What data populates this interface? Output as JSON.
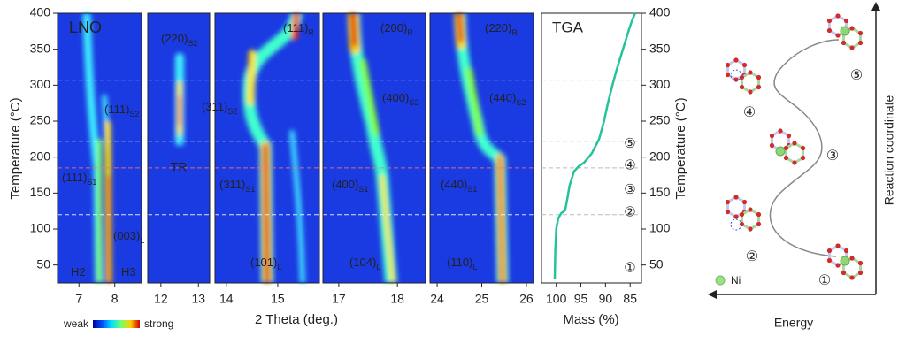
{
  "chart_data": [
    {
      "type": "heatmap",
      "ylabel": "Temperature (°C)",
      "xlabel": "2 Theta (deg.)",
      "ylim": [
        25,
        400
      ],
      "yticks": [
        50,
        100,
        150,
        200,
        250,
        300,
        350,
        400
      ],
      "panels": [
        {
          "title": "LNO",
          "xlim": [
            6.4,
            8.75
          ],
          "xticks": [
            7,
            8
          ],
          "labels": [
            {
              "label": "(111)",
              "sub": "S2"
            },
            {
              "label": "(111)",
              "sub": "S1"
            },
            {
              "label": "(003)",
              "sub": "L"
            },
            {
              "label": "H2"
            },
            {
              "label": "H3"
            }
          ]
        },
        {
          "xlim": [
            11.65,
            13.3
          ],
          "xticks": [
            12,
            13
          ],
          "labels": [
            {
              "label": "(220)",
              "sub": "S2"
            }
          ]
        },
        {
          "xlim": [
            13.78,
            15.81
          ],
          "xticks": [
            14,
            15
          ],
          "labels": [
            {
              "label": "(111)",
              "sub": "R"
            },
            {
              "label": "(311)",
              "sub": "S2"
            },
            {
              "label": "(311)",
              "sub": "S1"
            },
            {
              "label": "(101)",
              "sub": "L"
            }
          ]
        },
        {
          "xlim": [
            16.73,
            18.48
          ],
          "xticks": [
            17,
            18
          ],
          "labels": [
            {
              "label": "(200)",
              "sub": "R"
            },
            {
              "label": "(400)",
              "sub": "S2"
            },
            {
              "label": "(400)",
              "sub": "S1"
            },
            {
              "label": "(104)",
              "sub": "L"
            }
          ]
        },
        {
          "xlim": [
            23.84,
            26.16
          ],
          "xticks": [
            24,
            25,
            26
          ],
          "labels": [
            {
              "label": "(220)",
              "sub": "R"
            },
            {
              "label": "(440)",
              "sub": "S2"
            },
            {
              "label": "(440)",
              "sub": "S1"
            },
            {
              "label": "(110)",
              "sub": "L"
            }
          ]
        }
      ],
      "reference_lines": [
        {
          "value": 307,
          "color": "#ffffff"
        },
        {
          "value": 222,
          "color": "#ffffff"
        },
        {
          "value": 185,
          "color": "#ff7070"
        },
        {
          "value": 120,
          "color": "#ffffff"
        }
      ],
      "reference_label": "TR",
      "colorbar": {
        "low": "weak",
        "high": "strong"
      }
    },
    {
      "type": "line",
      "title": "TGA",
      "xlabel": "Mass (%)",
      "ylabel": "Temperature (°C)",
      "xlim": [
        103,
        82.7
      ],
      "xticks": [
        100,
        95,
        90,
        85
      ],
      "ylim": [
        25,
        400
      ],
      "yticks": [
        50,
        100,
        150,
        200,
        250,
        300,
        350,
        400
      ],
      "x": [
        100.3,
        100.2,
        100,
        99.6,
        99,
        98.2,
        97.8,
        97.3,
        96.4,
        95.3,
        94.4,
        92.8,
        91.3,
        90.3,
        89.5,
        88.6,
        87.8,
        86.9,
        86,
        85.2,
        84.6,
        84
      ],
      "series": [
        {
          "color": "#25c39c",
          "values": [
            30,
            70,
            100,
            115,
            122,
            126,
            140,
            160,
            180,
            188,
            192,
            205,
            225,
            250,
            275,
            300,
            320,
            340,
            360,
            378,
            390,
            400
          ]
        }
      ],
      "stage_markers": {
        "labels": [
          "①",
          "②",
          "③",
          "④",
          "⑤"
        ],
        "values": [
          45,
          123,
          154,
          188,
          218
        ]
      }
    }
  ],
  "diagram": {
    "stage_labels": [
      "①",
      "②",
      "③",
      "④",
      "⑤"
    ],
    "x_axis_label": "Energy",
    "y_axis_label": "Reaction coordinate",
    "legend_label": "Ni"
  }
}
